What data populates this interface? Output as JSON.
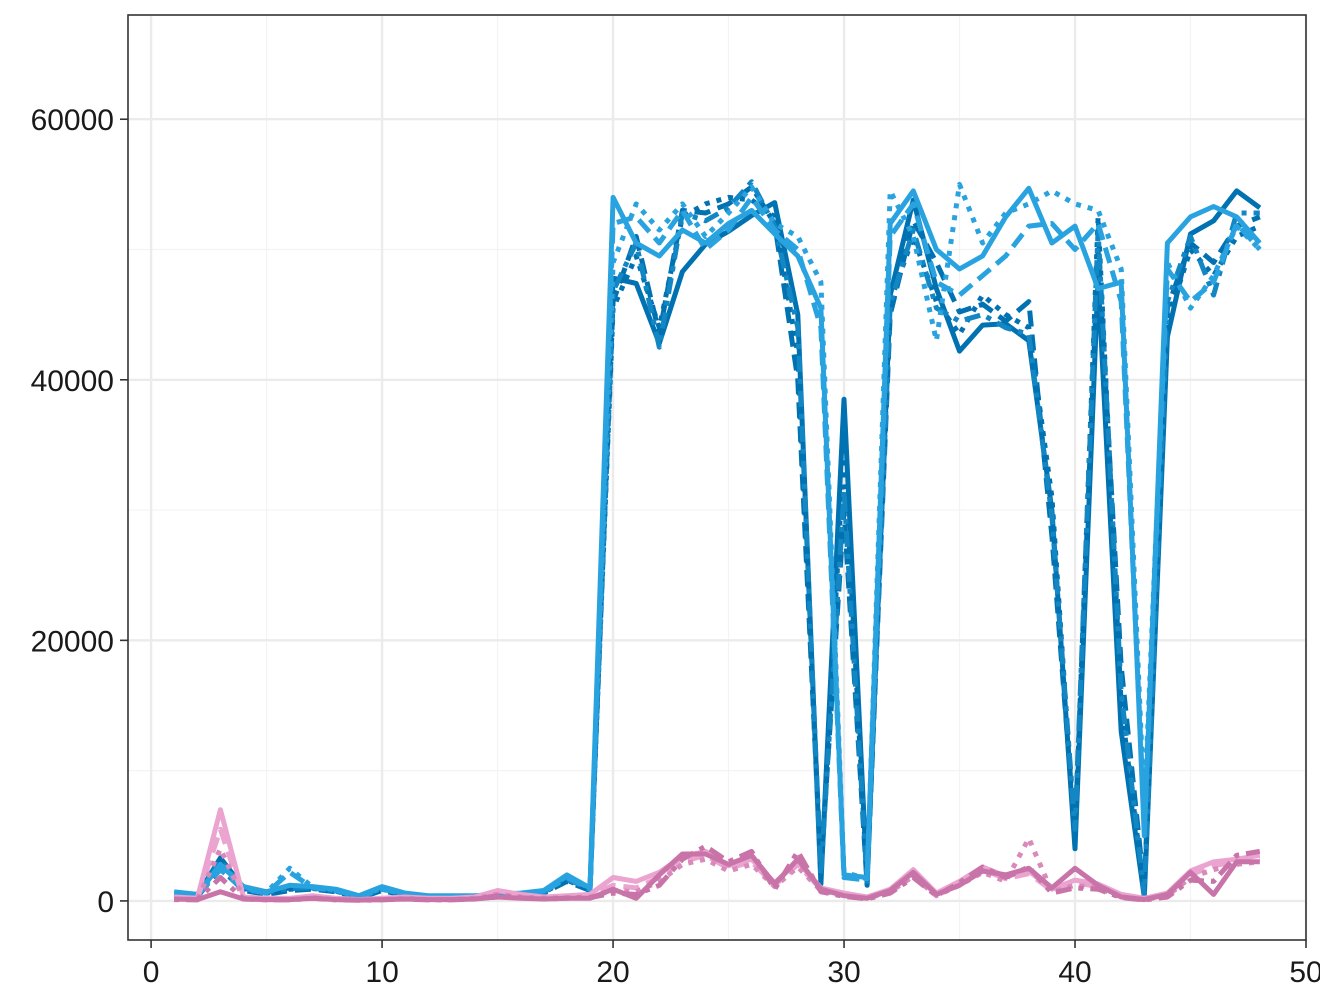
{
  "chart_data": {
    "type": "line",
    "title": "",
    "xlabel": "",
    "ylabel": "",
    "xlim": [
      -1,
      50
    ],
    "ylim": [
      -3000,
      68000
    ],
    "x_ticks": [
      0,
      10,
      20,
      30,
      40,
      50
    ],
    "x_tick_labels": [
      "0",
      "10",
      "20",
      "30",
      "40",
      "50"
    ],
    "y_ticks": [
      0,
      20000,
      40000,
      60000
    ],
    "y_tick_labels": [
      "0",
      "20000",
      "40000",
      "60000"
    ],
    "grid": true,
    "legend": "none",
    "colors": {
      "blue_dark": "#0072b2",
      "blue_mid": "#1386c4",
      "blue_light": "#29a3e0",
      "pink_light": "#eba3cf",
      "pink_mid": "#d989bb",
      "pink_dark": "#c874a8"
    },
    "x": [
      1,
      2,
      3,
      4,
      5,
      6,
      7,
      8,
      9,
      10,
      11,
      12,
      13,
      14,
      15,
      16,
      17,
      18,
      19,
      20,
      21,
      22,
      23,
      24,
      25,
      26,
      27,
      28,
      29,
      30,
      31,
      32,
      33,
      34,
      35,
      36,
      37,
      38,
      39,
      40,
      41,
      42,
      43,
      44,
      45,
      46,
      47,
      48
    ],
    "series": [
      {
        "color": "#0072b2",
        "dash": "solid",
        "values": [
          600,
          400,
          3300,
          1000,
          700,
          1000,
          1000,
          800,
          300,
          1000,
          500,
          300,
          300,
          300,
          400,
          500,
          700,
          1800,
          900,
          47800,
          47400,
          42800,
          48300,
          50400,
          51400,
          52600,
          53600,
          45000,
          1300,
          38500,
          1400,
          46500,
          53800,
          47000,
          42200,
          44200,
          44300,
          43000,
          30000,
          4000,
          47800,
          13000,
          300,
          43300,
          51200,
          52200,
          54500,
          53200
        ]
      },
      {
        "color": "#0072b2",
        "dash": "dashed",
        "values": [
          400,
          300,
          2500,
          800,
          500,
          800,
          900,
          700,
          200,
          800,
          400,
          200,
          200,
          200,
          300,
          400,
          600,
          1500,
          800,
          46000,
          51000,
          43500,
          53000,
          52800,
          53500,
          54800,
          52000,
          40000,
          2500,
          30000,
          1200,
          45000,
          52200,
          49000,
          45200,
          45800,
          44500,
          46000,
          28000,
          5000,
          50000,
          18000,
          900,
          45500,
          50500,
          49000,
          51800,
          52500
        ]
      },
      {
        "color": "#0072b2",
        "dash": "dotted",
        "values": [
          500,
          350,
          2900,
          900,
          600,
          900,
          950,
          750,
          250,
          900,
          450,
          250,
          250,
          250,
          350,
          450,
          650,
          1600,
          850,
          45500,
          49500,
          44000,
          52500,
          53500,
          54000,
          53800,
          52500,
          42000,
          1800,
          35000,
          1300,
          46000,
          51000,
          46000,
          43500,
          46500,
          45000,
          44000,
          31000,
          4500,
          52500,
          15000,
          600,
          44500,
          50000,
          48000,
          51000,
          51800
        ]
      },
      {
        "color": "#1386c4",
        "dash": "dotdash",
        "values": [
          550,
          380,
          3100,
          950,
          650,
          950,
          980,
          780,
          280,
          950,
          480,
          280,
          280,
          280,
          380,
          480,
          680,
          1700,
          870,
          46800,
          50500,
          42500,
          52800,
          52200,
          53200,
          55200,
          51800,
          44000,
          2000,
          31500,
          1500,
          45800,
          51500,
          45500,
          44500,
          45000,
          44000,
          43500,
          29500,
          5500,
          51500,
          16000,
          500,
          46000,
          51000,
          46500,
          52800,
          52800
        ]
      },
      {
        "color": "#29a3e0",
        "dash": "solid",
        "values": [
          700,
          500,
          2800,
          1100,
          700,
          1200,
          1100,
          900,
          400,
          1100,
          600,
          400,
          400,
          400,
          500,
          600,
          800,
          2000,
          1000,
          54000,
          50500,
          49500,
          51500,
          50500,
          52000,
          53000,
          51200,
          49500,
          45500,
          2000,
          1800,
          52000,
          54500,
          50000,
          48500,
          49500,
          52500,
          54700,
          50500,
          51800,
          47000,
          47500,
          5000,
          50500,
          52500,
          53300,
          52500,
          50500
        ]
      },
      {
        "color": "#29a3e0",
        "dash": "dashed",
        "values": [
          500,
          400,
          2400,
          900,
          600,
          2200,
          1000,
          800,
          300,
          900,
          500,
          300,
          300,
          300,
          400,
          500,
          700,
          1800,
          900,
          52000,
          52500,
          50500,
          53000,
          50000,
          51500,
          54000,
          51500,
          50000,
          44000,
          1800,
          1600,
          51000,
          53500,
          47500,
          46500,
          48000,
          49500,
          51800,
          52000,
          50000,
          52000,
          46000,
          6000,
          48500,
          46000,
          47500,
          52000,
          50000
        ]
      },
      {
        "color": "#29a3e0",
        "dash": "dotted",
        "values": [
          600,
          450,
          2600,
          1000,
          650,
          2500,
          1050,
          850,
          350,
          1000,
          550,
          350,
          350,
          350,
          450,
          550,
          750,
          1900,
          950,
          49000,
          53500,
          51500,
          53500,
          51000,
          52800,
          54800,
          52000,
          51000,
          47500,
          2200,
          1700,
          54500,
          51000,
          43000,
          55000,
          50500,
          52800,
          53500,
          54500,
          53500,
          53000,
          48500,
          7000,
          49000,
          45500,
          48000,
          51800,
          50000
        ]
      },
      {
        "color": "#eba3cf",
        "dash": "solid",
        "values": [
          300,
          200,
          7000,
          300,
          200,
          200,
          400,
          200,
          100,
          200,
          300,
          200,
          200,
          300,
          800,
          500,
          300,
          400,
          500,
          1800,
          1500,
          2200,
          3400,
          3800,
          2700,
          3200,
          1400,
          3000,
          1000,
          600,
          300,
          900,
          2400,
          600,
          1500,
          2600,
          1900,
          2300,
          900,
          1600,
          1300,
          500,
          200,
          600,
          2300,
          3000,
          3200,
          3500
        ]
      },
      {
        "color": "#eba3cf",
        "dash": "dashed",
        "values": [
          200,
          150,
          5500,
          250,
          150,
          150,
          300,
          150,
          80,
          150,
          250,
          150,
          150,
          250,
          600,
          400,
          250,
          300,
          400,
          1200,
          1000,
          1800,
          3000,
          3500,
          2500,
          3000,
          1200,
          2800,
          900,
          500,
          250,
          800,
          2100,
          500,
          1300,
          2400,
          1700,
          2100,
          800,
          1400,
          1100,
          400,
          150,
          500,
          2000,
          2700,
          3000,
          3200
        ]
      },
      {
        "color": "#d989bb",
        "dash": "dotted",
        "values": [
          150,
          100,
          4000,
          200,
          100,
          100,
          250,
          100,
          60,
          100,
          200,
          100,
          100,
          200,
          500,
          300,
          200,
          250,
          300,
          800,
          700,
          1500,
          2800,
          3200,
          2300,
          2800,
          1100,
          2600,
          800,
          400,
          200,
          700,
          1900,
          400,
          1200,
          2200,
          1500,
          4800,
          700,
          1200,
          1000,
          300,
          100,
          400,
          1800,
          2400,
          2800,
          3000
        ]
      },
      {
        "color": "#c874a8",
        "dash": "dotdash",
        "values": [
          100,
          80,
          1800,
          150,
          80,
          80,
          200,
          80,
          50,
          80,
          150,
          80,
          80,
          150,
          400,
          250,
          150,
          200,
          250,
          600,
          500,
          1200,
          3200,
          4200,
          3000,
          3800,
          900,
          3800,
          700,
          350,
          150,
          600,
          1800,
          400,
          1400,
          2600,
          1800,
          2600,
          600,
          1000,
          900,
          250,
          80,
          300,
          1600,
          1500,
          3500,
          3800
        ]
      },
      {
        "color": "#c874a8",
        "dash": "solid",
        "values": [
          150,
          100,
          700,
          150,
          100,
          100,
          200,
          100,
          60,
          100,
          150,
          100,
          100,
          150,
          300,
          200,
          150,
          200,
          200,
          900,
          200,
          2000,
          3600,
          3600,
          2800,
          3500,
          1300,
          3200,
          900,
          400,
          200,
          800,
          2200,
          500,
          1200,
          2300,
          2000,
          2500,
          1000,
          2500,
          1200,
          300,
          100,
          500,
          2200,
          500,
          3000,
          3000
        ]
      }
    ]
  }
}
